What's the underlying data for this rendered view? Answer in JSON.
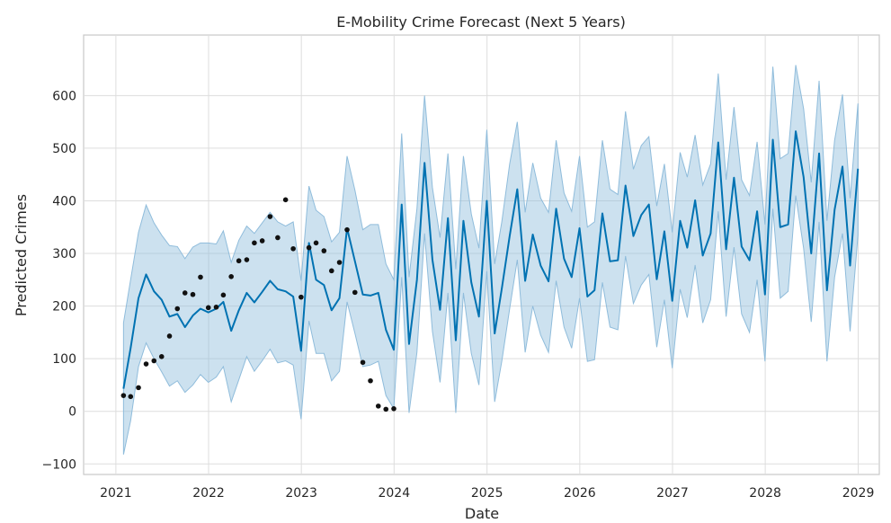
{
  "chart_data": {
    "type": "line",
    "title": "E-Mobility Crime Forecast (Next 5 Years)",
    "xlabel": "Date",
    "ylabel": "Predicted Crimes",
    "x_axis_type": "date",
    "xlim": [
      "2020-08-27",
      "2029-03-25"
    ],
    "ylim": [
      -120,
      715
    ],
    "x_ticks": [
      "2021",
      "2022",
      "2023",
      "2024",
      "2025",
      "2026",
      "2027",
      "2028",
      "2029"
    ],
    "y_ticks": [
      -100,
      0,
      100,
      200,
      300,
      400,
      500,
      600
    ],
    "grid": true,
    "colors": {
      "forecast_line": "#0072b2",
      "uncertainty_band": "#8fbcdb",
      "observed_points": "#111111",
      "grid": "#dddddd",
      "frame": "#c8c8c8"
    },
    "series": [
      {
        "kind": "forecast",
        "x": [
          "2021-01-31",
          "2021-02-28",
          "2021-03-31",
          "2021-04-30",
          "2021-05-31",
          "2021-06-30",
          "2021-07-31",
          "2021-08-31",
          "2021-09-30",
          "2021-10-31",
          "2021-11-30",
          "2021-12-31",
          "2022-01-31",
          "2022-02-28",
          "2022-03-31",
          "2022-04-30",
          "2022-05-31",
          "2022-06-30",
          "2022-07-31",
          "2022-08-31",
          "2022-09-30",
          "2022-10-31",
          "2022-11-30",
          "2022-12-31",
          "2023-01-31",
          "2023-02-28",
          "2023-03-31",
          "2023-04-30",
          "2023-05-31",
          "2023-06-30",
          "2023-07-31",
          "2023-08-31",
          "2023-09-30",
          "2023-10-31",
          "2023-11-30",
          "2023-12-31",
          "2024-01-31",
          "2024-02-29",
          "2024-03-31",
          "2024-04-30",
          "2024-05-31",
          "2024-06-30",
          "2024-07-31",
          "2024-08-31",
          "2024-09-30",
          "2024-10-31",
          "2024-11-30",
          "2024-12-31",
          "2025-01-31",
          "2025-02-28",
          "2025-03-31",
          "2025-04-30",
          "2025-05-31",
          "2025-06-30",
          "2025-07-31",
          "2025-08-31",
          "2025-09-30",
          "2025-10-31",
          "2025-11-30",
          "2025-12-31",
          "2026-01-31",
          "2026-02-28",
          "2026-03-31",
          "2026-04-30",
          "2026-05-31",
          "2026-06-30",
          "2026-07-31",
          "2026-08-31",
          "2026-09-30",
          "2026-10-31",
          "2026-11-30",
          "2026-12-31",
          "2027-01-31",
          "2027-02-28",
          "2027-03-31",
          "2027-04-30",
          "2027-05-31",
          "2027-06-30",
          "2027-07-31",
          "2027-08-31",
          "2027-09-30",
          "2027-10-31",
          "2027-11-30",
          "2027-12-31",
          "2028-01-31",
          "2028-02-29",
          "2028-03-31",
          "2028-04-30",
          "2028-05-31",
          "2028-06-30",
          "2028-07-31",
          "2028-08-31",
          "2028-09-30",
          "2028-10-31",
          "2028-11-30",
          "2028-12-31"
        ],
        "yhat": [
          43,
          120,
          215,
          260,
          228,
          212,
          180,
          185,
          160,
          182,
          195,
          188,
          195,
          208,
          153,
          192,
          225,
          207,
          227,
          248,
          232,
          228,
          218,
          115,
          320,
          250,
          240,
          192,
          215,
          348,
          285,
          222,
          220,
          225,
          155,
          117,
          393,
          128,
          250,
          472,
          288,
          193,
          367,
          135,
          362,
          245,
          180,
          400,
          148,
          233,
          333,
          422,
          248,
          336,
          277,
          247,
          385,
          290,
          255,
          348,
          218,
          230,
          376,
          285,
          287,
          429,
          333,
          373,
          393,
          251,
          342,
          210,
          362,
          311,
          401,
          296,
          338,
          511,
          308,
          444,
          313,
          287,
          380,
          222,
          516,
          350,
          355,
          532,
          445,
          300,
          490,
          230,
          383,
          465,
          277,
          461
        ],
        "yhat_lower": [
          -82,
          -18,
          85,
          130,
          100,
          75,
          48,
          58,
          36,
          50,
          70,
          55,
          65,
          85,
          18,
          60,
          104,
          76,
          96,
          118,
          92,
          96,
          88,
          -15,
          172,
          110,
          110,
          58,
          76,
          208,
          148,
          85,
          88,
          95,
          30,
          5,
          255,
          -3,
          112,
          338,
          152,
          55,
          225,
          -3,
          225,
          110,
          50,
          266,
          18,
          95,
          195,
          288,
          112,
          200,
          145,
          112,
          248,
          160,
          120,
          215,
          95,
          98,
          245,
          160,
          155,
          295,
          205,
          240,
          260,
          122,
          212,
          82,
          232,
          178,
          278,
          168,
          212,
          380,
          180,
          312,
          185,
          150,
          250,
          95,
          385,
          215,
          228,
          410,
          310,
          170,
          360,
          95,
          255,
          338,
          152,
          335
        ],
        "yhat_upper": [
          168,
          250,
          340,
          392,
          358,
          335,
          315,
          313,
          290,
          312,
          320,
          320,
          318,
          343,
          283,
          325,
          352,
          338,
          358,
          378,
          360,
          352,
          360,
          248,
          428,
          382,
          370,
          322,
          340,
          485,
          420,
          345,
          355,
          355,
          280,
          250,
          528,
          255,
          385,
          600,
          425,
          330,
          490,
          270,
          485,
          375,
          310,
          535,
          280,
          360,
          470,
          550,
          378,
          472,
          405,
          378,
          515,
          415,
          380,
          485,
          350,
          360,
          515,
          422,
          412,
          570,
          460,
          505,
          522,
          390,
          470,
          340,
          492,
          445,
          525,
          430,
          470,
          642,
          440,
          578,
          440,
          410,
          512,
          355,
          655,
          480,
          490,
          658,
          575,
          435,
          628,
          362,
          515,
          602,
          405,
          585
        ]
      },
      {
        "kind": "observed",
        "x": [
          "2021-01-31",
          "2021-02-28",
          "2021-03-31",
          "2021-04-30",
          "2021-05-31",
          "2021-06-30",
          "2021-07-31",
          "2021-08-31",
          "2021-09-30",
          "2021-10-31",
          "2021-11-30",
          "2021-12-31",
          "2022-01-31",
          "2022-02-28",
          "2022-03-31",
          "2022-04-30",
          "2022-05-31",
          "2022-06-30",
          "2022-07-31",
          "2022-08-31",
          "2022-09-30",
          "2022-10-31",
          "2022-11-30",
          "2022-12-31",
          "2023-01-31",
          "2023-02-28",
          "2023-03-31",
          "2023-04-30",
          "2023-05-31",
          "2023-06-30",
          "2023-07-31",
          "2023-08-31",
          "2023-09-30",
          "2023-10-31",
          "2023-11-30",
          "2023-12-31"
        ],
        "y": [
          30,
          28,
          45,
          90,
          96,
          104,
          143,
          195,
          225,
          222,
          255,
          197,
          198,
          221,
          256,
          286,
          288,
          320,
          324,
          370,
          330,
          402,
          309,
          217,
          311,
          320,
          305,
          267,
          283,
          345,
          226,
          93,
          58,
          10,
          4,
          5
        ]
      }
    ]
  }
}
